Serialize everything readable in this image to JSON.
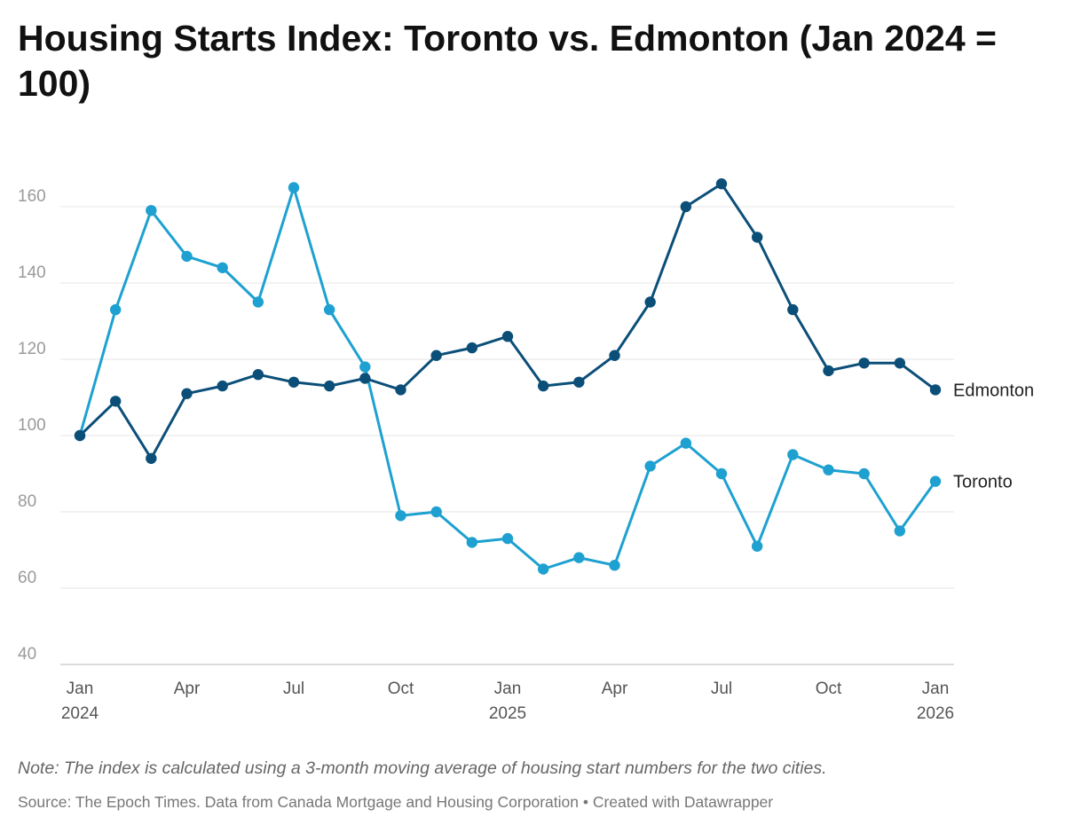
{
  "title": "Housing Starts Index: Toronto vs. Edmonton (Jan 2024 = 100)",
  "note": "Note: The index is calculated using a 3-month moving average of housing start numbers for the two cities.",
  "source": "Source: The Epoch Times. Data from Canada Mortgage and Housing Corporation • Created with Datawrapper",
  "chart_data": {
    "type": "line",
    "x": [
      "2024-01",
      "2024-02",
      "2024-03",
      "2024-04",
      "2024-05",
      "2024-06",
      "2024-07",
      "2024-08",
      "2024-09",
      "2024-10",
      "2024-11",
      "2024-12",
      "2025-01",
      "2025-02",
      "2025-03",
      "2025-04",
      "2025-05",
      "2025-06",
      "2025-07",
      "2025-08",
      "2025-09",
      "2025-10",
      "2025-11",
      "2025-12",
      "2026-01"
    ],
    "x_ticks": [
      {
        "label": "Jan",
        "sub": "2024",
        "index": 0
      },
      {
        "label": "Apr",
        "sub": "",
        "index": 3
      },
      {
        "label": "Jul",
        "sub": "",
        "index": 6
      },
      {
        "label": "Oct",
        "sub": "",
        "index": 9
      },
      {
        "label": "Jan",
        "sub": "2025",
        "index": 12
      },
      {
        "label": "Apr",
        "sub": "",
        "index": 15
      },
      {
        "label": "Jul",
        "sub": "",
        "index": 18
      },
      {
        "label": "Oct",
        "sub": "",
        "index": 21
      },
      {
        "label": "Jan",
        "sub": "2026",
        "index": 24
      }
    ],
    "y_ticks": [
      40,
      60,
      80,
      100,
      120,
      140,
      160
    ],
    "ylim": [
      40,
      166
    ],
    "grid": true,
    "series": [
      {
        "name": "Edmonton",
        "color": "#0b4f79",
        "values": [
          100,
          109,
          94,
          111,
          113,
          116,
          114,
          113,
          115,
          112,
          121,
          123,
          126,
          113,
          114,
          121,
          135,
          160,
          166,
          152,
          133,
          117,
          119,
          119,
          112
        ]
      },
      {
        "name": "Toronto",
        "color": "#1ea1d0",
        "values": [
          100,
          133,
          159,
          147,
          144,
          135,
          165,
          133,
          118,
          79,
          80,
          72,
          73,
          65,
          68,
          66,
          92,
          98,
          90,
          71,
          95,
          91,
          90,
          75,
          88
        ]
      }
    ]
  }
}
